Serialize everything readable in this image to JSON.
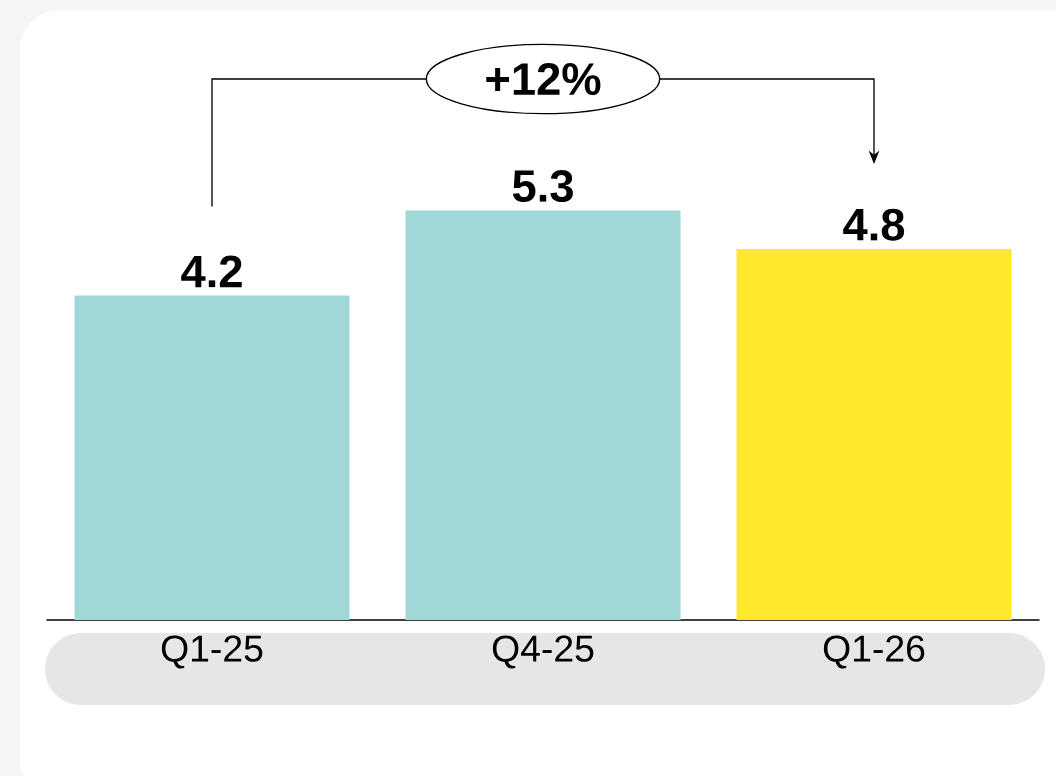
{
  "chart_data": {
    "type": "bar",
    "categories": [
      "Q1-25",
      "Q4-25",
      "Q1-26"
    ],
    "values": [
      4.2,
      5.3,
      4.8
    ],
    "colors": [
      "#a0d8d8",
      "#a0d8d8",
      "#ffe82e"
    ],
    "ylim": [
      0,
      7
    ],
    "data_labels": true,
    "tick_labels": "x",
    "grid": false,
    "annotations": [
      "+12%"
    ]
  }
}
